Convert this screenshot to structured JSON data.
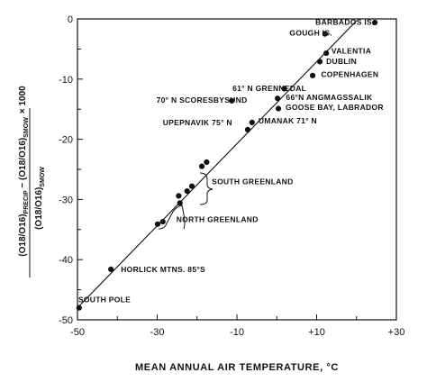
{
  "chart_data": {
    "type": "scatter",
    "title": "",
    "xlabel": "MEAN ANNUAL AIR TEMPERATURE, °C",
    "ylabel": {
      "numerator_a": "(O18/O16)",
      "numerator_a_sub": "PRECIP",
      "numerator_minus": " − ",
      "numerator_b": "(O18/O16)",
      "numerator_b_sub": "SMOW",
      "multiplier": "× 1000",
      "denominator": "(O18/O16)",
      "denominator_sub": "SMOW"
    },
    "xlim": [
      -50,
      30
    ],
    "ylim": [
      -50,
      0
    ],
    "x_ticks": [
      {
        "value": -50,
        "label": "-50"
      },
      {
        "value": -30,
        "label": "-30"
      },
      {
        "value": -10,
        "label": "-10"
      },
      {
        "value": 10,
        "label": "+10"
      },
      {
        "value": 30,
        "label": "+30"
      }
    ],
    "y_ticks": [
      {
        "value": 0,
        "label": "0"
      },
      {
        "value": -10,
        "label": "-10"
      },
      {
        "value": -20,
        "label": "-20"
      },
      {
        "value": -30,
        "label": "-30"
      },
      {
        "value": -40,
        "label": "-40"
      },
      {
        "value": -50,
        "label": "-50"
      }
    ],
    "fit_line": {
      "x": [
        -50,
        20
      ],
      "y": [
        -48,
        -0.3
      ]
    },
    "points": [
      {
        "x": 24.6,
        "y": -0.6
      },
      {
        "x": 12.1,
        "y": -2.5
      },
      {
        "x": 12.4,
        "y": -5.7
      },
      {
        "x": 10.8,
        "y": -7.1
      },
      {
        "x": 9.0,
        "y": -9.4
      },
      {
        "x": 1.9,
        "y": -11.6
      },
      {
        "x": 0.2,
        "y": -13.2
      },
      {
        "x": -11.3,
        "y": -13.6
      },
      {
        "x": 0.4,
        "y": -14.9
      },
      {
        "x": -6.2,
        "y": -17.2
      },
      {
        "x": -7.3,
        "y": -18.4
      },
      {
        "x": -17.6,
        "y": -23.8
      },
      {
        "x": -18.8,
        "y": -24.5
      },
      {
        "x": -21.3,
        "y": -27.8
      },
      {
        "x": -22.5,
        "y": -28.6
      },
      {
        "x": -24.6,
        "y": -29.4
      },
      {
        "x": -24.3,
        "y": -30.6
      },
      {
        "x": -28.6,
        "y": -33.7
      },
      {
        "x": -29.9,
        "y": -34.1
      },
      {
        "x": -41.6,
        "y": -41.6
      },
      {
        "x": -49.6,
        "y": -48.0
      }
    ],
    "annotations": [
      {
        "text": "BARBADOS IS.",
        "x": 9.7,
        "y": -0.5
      },
      {
        "text": "GOUGH IS.",
        "x": 3.2,
        "y": -2.3
      },
      {
        "text": "VALENTIA",
        "x": 13.7,
        "y": -5.3
      },
      {
        "text": "DUBLIN",
        "x": 12.4,
        "y": -7.0
      },
      {
        "text": "COPENHAGEN",
        "x": 11.1,
        "y": -9.2
      },
      {
        "text": "61° N GRENNEDAL",
        "x": -11.1,
        "y": -11.5
      },
      {
        "text": "66°N ANGMAGSSALIK",
        "x": 2.3,
        "y": -13.0
      },
      {
        "text": "70° N SCORESBYSUND",
        "x": -30.2,
        "y": -13.5
      },
      {
        "text": "GOOSE BAY, LABRADOR",
        "x": 2.2,
        "y": -14.7
      },
      {
        "text": "UPEPNAVIK 75° N",
        "x": -28.6,
        "y": -17.2
      },
      {
        "text": "UMANAK 71° N",
        "x": -4.6,
        "y": -16.9
      },
      {
        "text": "SOUTH GREENLAND",
        "x": -16.3,
        "y": -27.0
      },
      {
        "text": "NORTH GREENLAND",
        "x": -25.2,
        "y": -33.3
      },
      {
        "text": "HORLICK MTNS. 85°S",
        "x": -39.1,
        "y": -41.6
      },
      {
        "text": "SOUTH POLE",
        "x": -49.8,
        "y": -46.6
      }
    ]
  }
}
